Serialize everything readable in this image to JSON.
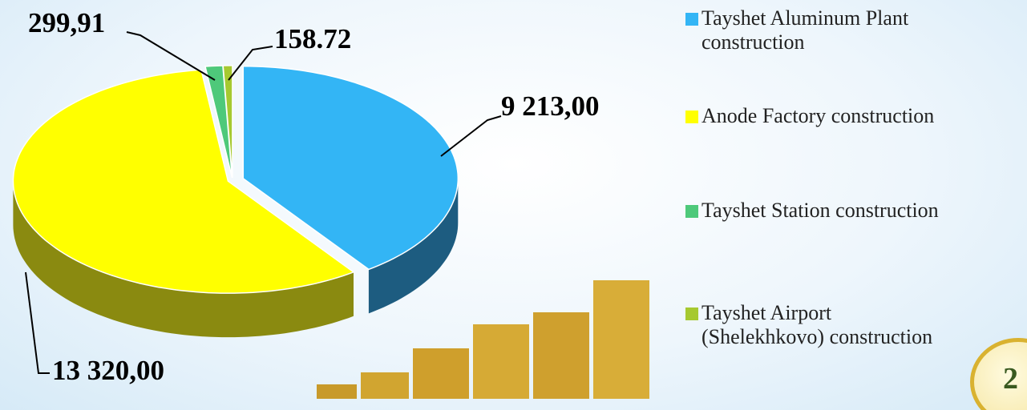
{
  "chart_data": {
    "type": "pie3d",
    "categories": [
      "Tayshet Aluminum Plant construction",
      "Anode Factory construction",
      "Tayshet Station construction",
      "Tayshet Airport (Shelekhkovo) construction"
    ],
    "values": [
      9213.0,
      13320.0,
      299.91,
      158.72
    ],
    "value_labels": [
      "9 213,00",
      "13 320,00",
      "299,91",
      "158.72"
    ],
    "colors": [
      "#33b5f5",
      "#ffff00",
      "#4ec97a",
      "#a6c930"
    ],
    "side_colors": [
      "#1d5c80",
      "#8a8a10",
      "#2c7a48",
      "#667a1a"
    ]
  },
  "slide_number": "2"
}
